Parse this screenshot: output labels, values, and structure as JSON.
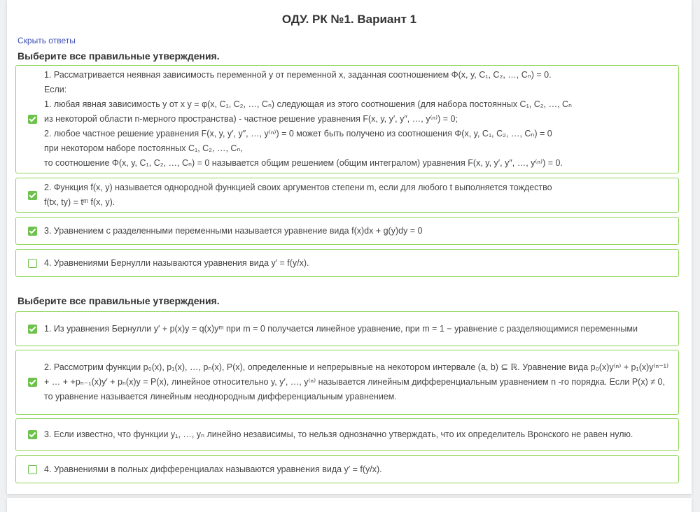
{
  "title": "ОДУ. РК №1. Вариант 1",
  "toggle_answers": "Скрыть ответы",
  "accent": "#8fd45a",
  "questions": [
    {
      "heading": "Выберите все правильные утверждения.",
      "options": [
        {
          "checked": true,
          "lines": [
            "1. Рассматривается неявная зависимость переменной y от переменной x, заданная соотношением Φ(x, y, C₁, C₂, …, Cₙ) = 0.",
            "Если:",
            "1. любая явная зависимость y от x y = φ(x, C₁, C₂, …, Cₙ) следующая из этого соотношения (для набора постоянных C₁, C₂, …, Cₙ",
            "из некоторой области n-мерного пространства) - частное решение уравнения F(x, y, y′, y″, …, y⁽ⁿ⁾) = 0;",
            "2. любое частное решение уравнения F(x, y, y′, y″, …, y⁽ⁿ⁾) = 0 может быть получено из соотношения Φ(x, y, C₁, C₂, …, Cₙ) = 0",
            "при некотором наборе постоянных C₁, C₂, …, Cₙ,",
            "то соотношение Φ(x, y, C₁, C₂, …, Cₙ) = 0 называется общим решением (общим интегралом) уравнения F(x, y, y′, y″, …, y⁽ⁿ⁾) = 0."
          ]
        },
        {
          "checked": true,
          "lines": [
            "2. Функция f(x, y) называется однородной функцией своих аргументов степени m, если для любого t выполняется тождество",
            "f(tx, ty) = tᵐ f(x, y)."
          ]
        },
        {
          "checked": true,
          "lines": [
            "3. Уравнением с разделенными переменными называется уравнение вида f(x)dx + g(y)dy = 0"
          ]
        },
        {
          "checked": false,
          "lines": [
            "4. Уравнениями Бернулли называются уравнения вида y′ = f(y/x)."
          ]
        }
      ]
    },
    {
      "heading": "Выберите все правильные утверждения.",
      "options": [
        {
          "checked": true,
          "lines": [
            "1. Из уравнения Бернулли y′ + p(x)y = q(x)yᵐ при m = 0 получается линейное уравнение, при m = 1 − уравнение с разделяющимися переменными"
          ]
        },
        {
          "checked": true,
          "lines": [
            "2. Рассмотрим функции p₀(x), p₁(x), …, pₙ(x), P(x), определенные и непрерывные на некотором интервале (a, b) ⊆ ℝ. Уравнение вида p₀(x)y⁽ⁿ⁾ + p₁(x)y⁽ⁿ⁻¹⁾+ … + +pₙ₋₁(x)y′ + pₙ(x)y = P(x), линейное относительно y, y′, …, y⁽ⁿ⁾ называется линейным дифференциальным уравнением n -го порядка. Если P(x) ≠ 0, то уравнение называется линейным неоднородным дифференциальным уравнением."
          ]
        },
        {
          "checked": true,
          "lines": [
            "3. Если известно, что функции y₁, …, yₙ линейно независимы, то нельзя однозначно утверждать, что их определитель Вронского не равен нулю."
          ]
        },
        {
          "checked": false,
          "lines": [
            "4. Уравнениями в полных дифференциалах называются уравнения вида y′ = f(y/x)."
          ]
        }
      ]
    }
  ]
}
